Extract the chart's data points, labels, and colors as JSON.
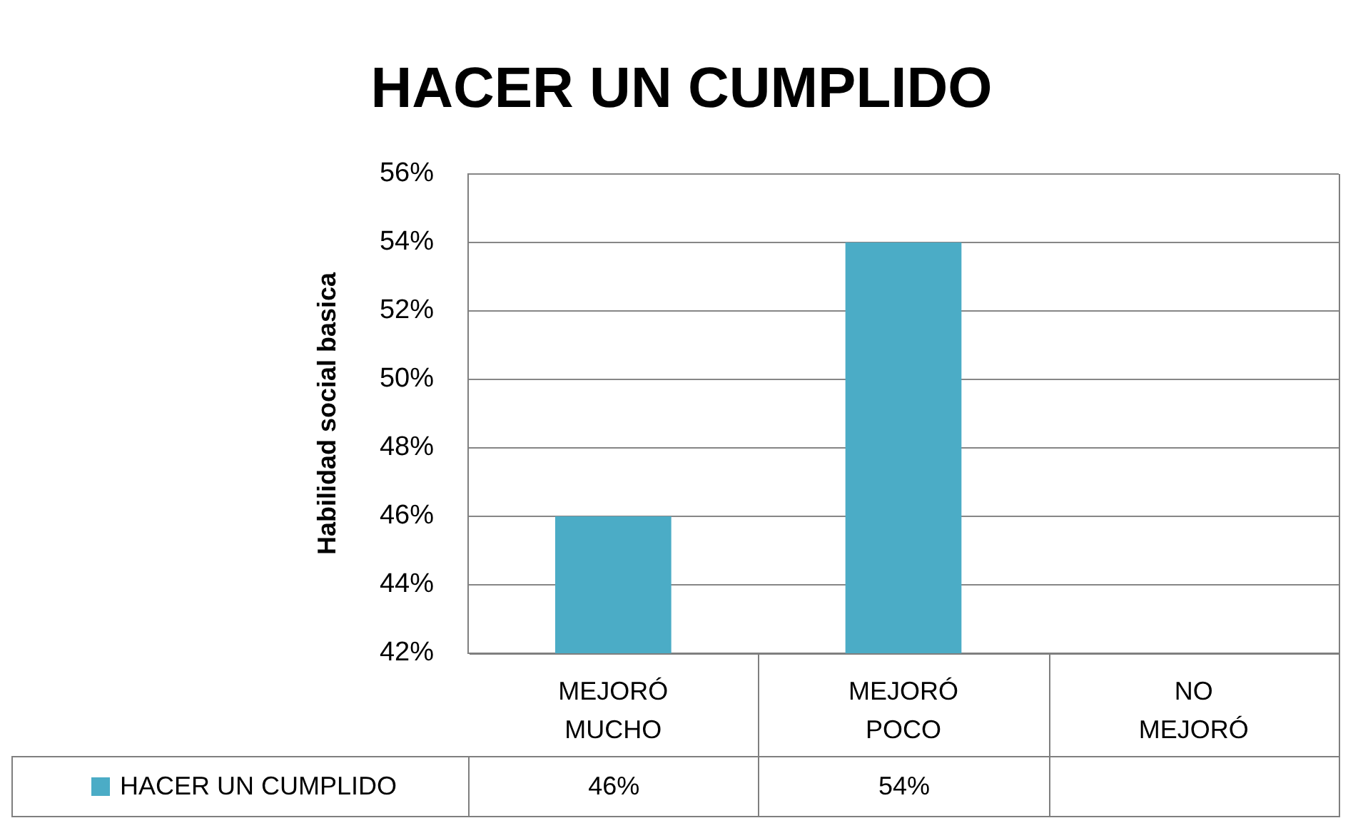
{
  "chart_data": {
    "type": "bar",
    "title": "HACER UN CUMPLIDO",
    "ylabel": "Habilidad social basica",
    "categories": [
      "MEJORÓ MUCHO",
      "MEJORÓ POCO",
      "NO MEJORÓ"
    ],
    "series": [
      {
        "name": "HACER UN CUMPLIDO",
        "color": "#4bacc6",
        "values": [
          46,
          54,
          null
        ],
        "value_labels": [
          "46%",
          "54%",
          null
        ]
      }
    ],
    "ylim": [
      42,
      56
    ],
    "yticks": [
      {
        "value": 42,
        "label": "42%"
      },
      {
        "value": 44,
        "label": "44%"
      },
      {
        "value": 46,
        "label": "46%"
      },
      {
        "value": 48,
        "label": "48%"
      },
      {
        "value": 50,
        "label": "50%"
      },
      {
        "value": 52,
        "label": "52%"
      },
      {
        "value": 54,
        "label": "54%"
      },
      {
        "value": 56,
        "label": "56%"
      }
    ],
    "grid": "y",
    "legend": "bottom"
  }
}
